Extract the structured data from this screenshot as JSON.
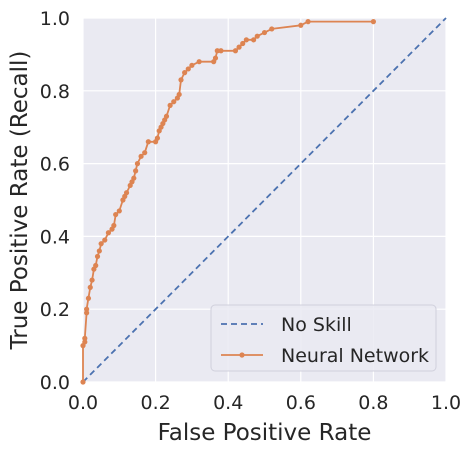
{
  "chart_data": {
    "type": "line",
    "title": "",
    "xlabel": "False Positive Rate",
    "ylabel": "True Positive Rate (Recall)",
    "xlim": [
      0,
      1
    ],
    "ylim": [
      0,
      1
    ],
    "xticks": [
      "0.0",
      "0.2",
      "0.4",
      "0.6",
      "0.8",
      "1.0"
    ],
    "yticks": [
      "0.0",
      "0.2",
      "0.4",
      "0.6",
      "0.8",
      "1.0"
    ],
    "grid": true,
    "background": "#eaeaf2",
    "legend_position": "lower-right",
    "series": [
      {
        "name": "No Skill",
        "style": "dashed",
        "color": "#4c72b0",
        "x": [
          0,
          1
        ],
        "y": [
          0,
          1
        ]
      },
      {
        "name": "Neural Network",
        "style": "solid-dots",
        "color": "#dd8452",
        "x": [
          0.0,
          0.0,
          0.005,
          0.005,
          0.01,
          0.01,
          0.015,
          0.02,
          0.025,
          0.03,
          0.035,
          0.04,
          0.045,
          0.05,
          0.06,
          0.07,
          0.08,
          0.085,
          0.09,
          0.1,
          0.11,
          0.115,
          0.12,
          0.13,
          0.135,
          0.14,
          0.145,
          0.15,
          0.16,
          0.17,
          0.18,
          0.2,
          0.205,
          0.21,
          0.215,
          0.22,
          0.225,
          0.23,
          0.24,
          0.25,
          0.26,
          0.265,
          0.27,
          0.28,
          0.29,
          0.3,
          0.32,
          0.36,
          0.365,
          0.37,
          0.38,
          0.42,
          0.43,
          0.44,
          0.45,
          0.47,
          0.48,
          0.5,
          0.52,
          0.6,
          0.62,
          0.8
        ],
        "y": [
          0.0,
          0.1,
          0.11,
          0.12,
          0.19,
          0.2,
          0.23,
          0.26,
          0.28,
          0.31,
          0.32,
          0.345,
          0.36,
          0.38,
          0.39,
          0.41,
          0.42,
          0.43,
          0.46,
          0.47,
          0.5,
          0.51,
          0.52,
          0.54,
          0.55,
          0.56,
          0.58,
          0.6,
          0.62,
          0.63,
          0.66,
          0.66,
          0.67,
          0.69,
          0.7,
          0.71,
          0.72,
          0.73,
          0.76,
          0.77,
          0.78,
          0.79,
          0.83,
          0.85,
          0.86,
          0.87,
          0.88,
          0.88,
          0.89,
          0.91,
          0.91,
          0.91,
          0.92,
          0.93,
          0.94,
          0.94,
          0.95,
          0.96,
          0.97,
          0.98,
          0.99,
          0.99
        ]
      }
    ]
  }
}
